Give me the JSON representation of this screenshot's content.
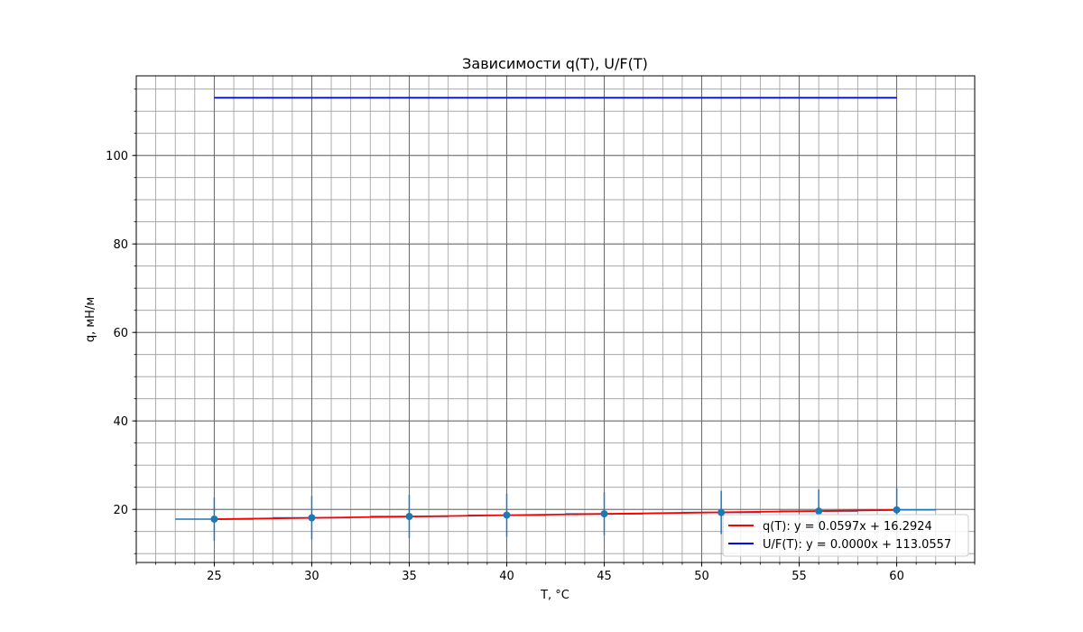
{
  "chart_data": {
    "type": "scatter",
    "title": "Зависимости q(T), U/F(T)",
    "xlabel": "T, °C",
    "ylabel": "q, мН/м",
    "xlim": [
      21,
      64
    ],
    "ylim": [
      8,
      118
    ],
    "x_ticks": [
      25,
      30,
      35,
      40,
      45,
      50,
      55,
      60
    ],
    "y_ticks": [
      20,
      40,
      60,
      80,
      100
    ],
    "grid": true,
    "legend_position": "bottom-right",
    "points": {
      "x": [
        25,
        30,
        35,
        40,
        45,
        51,
        56,
        60
      ],
      "y": [
        17.8,
        18.1,
        18.4,
        18.7,
        19.0,
        19.3,
        19.6,
        19.9
      ],
      "x_err": [
        2,
        2,
        2,
        2,
        2,
        2,
        2,
        2
      ],
      "y_err": [
        4.9,
        4.9,
        4.9,
        4.9,
        4.9,
        4.9,
        4.9,
        4.9
      ],
      "color": "#1f77b4"
    },
    "series": [
      {
        "name": "q(T): y = 0.0597x + 16.2924",
        "color": "#ff0000",
        "slope": 0.0597,
        "intercept": 16.2924,
        "x_range": [
          25,
          60
        ]
      },
      {
        "name": "U/F(T): y = 0.0000x + 113.0557",
        "color": "#0000ff",
        "slope": 0.0,
        "intercept": 113.0557,
        "x_range": [
          25,
          60
        ]
      }
    ]
  }
}
